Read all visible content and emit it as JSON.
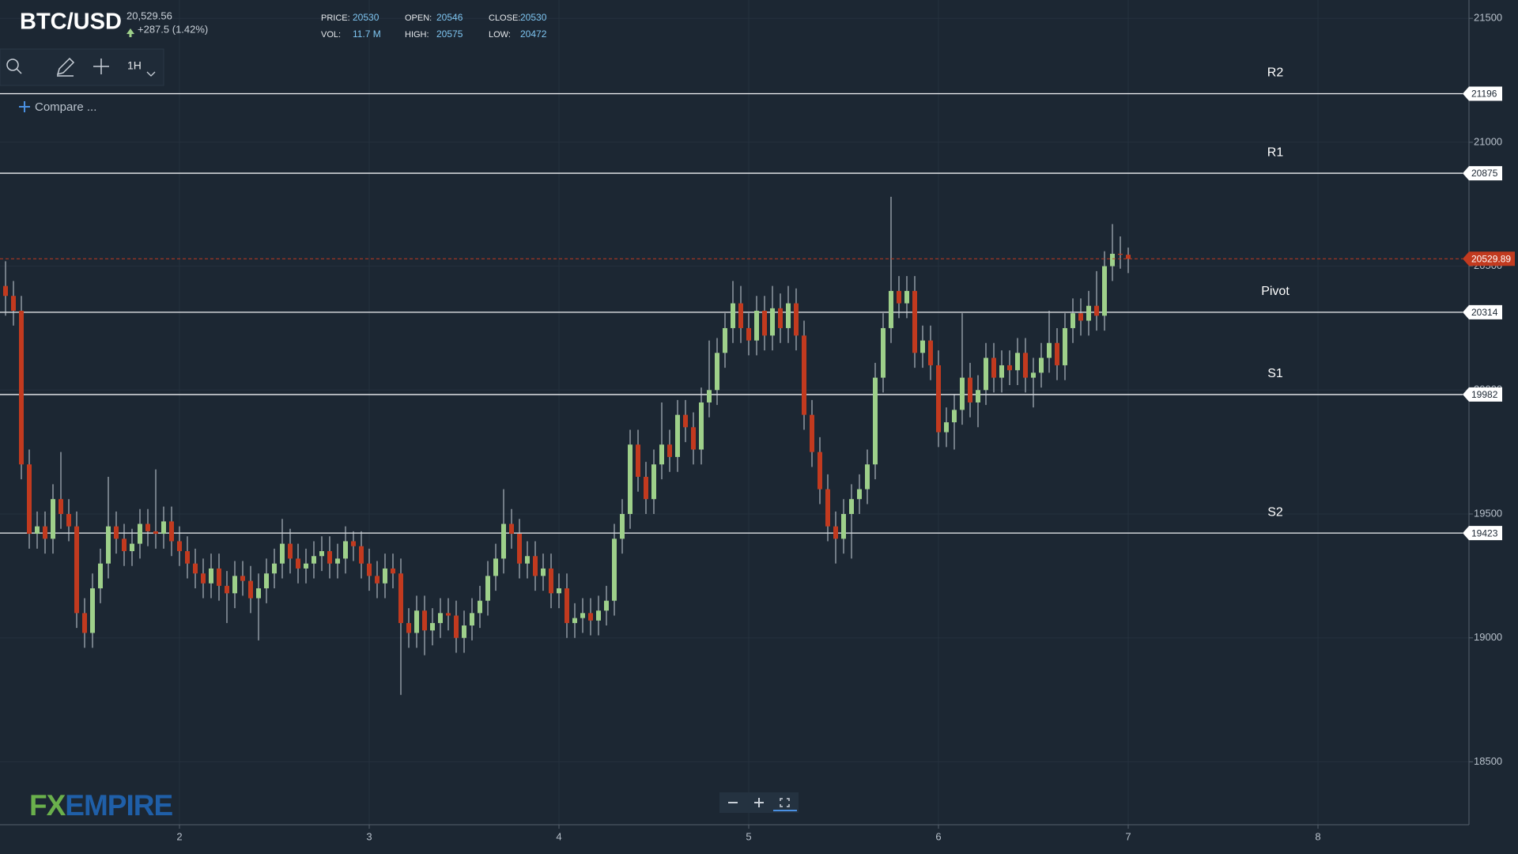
{
  "chart_data": {
    "type": "candlestick",
    "title": "BTC/USD",
    "price": "20,529.56",
    "change": "+287.5 (1.42%)",
    "stats": [
      {
        "label": "PRICE:",
        "value": 20530
      },
      {
        "label": "OPEN:",
        "value": 20546
      },
      {
        "label": "CLOSE:",
        "value": 20530
      },
      {
        "label": "VOL:",
        "value": "11.7 M"
      },
      {
        "label": "HIGH:",
        "value": 20575
      },
      {
        "label": "LOW:",
        "value": 20472
      }
    ],
    "interval": "1H",
    "compare": "Compare ...",
    "logo": {
      "fx": "FX",
      "empire": "EMPIRE"
    },
    "up_color": "#9ed08a",
    "down_color": "#c23a1f",
    "x": [
      26,
      27,
      28,
      29,
      30,
      31,
      32,
      33,
      34,
      35,
      36,
      37,
      38,
      39,
      40,
      41,
      42,
      43,
      44,
      45,
      46,
      47,
      48,
      49,
      50,
      51,
      52,
      53,
      54,
      55,
      56,
      57,
      58,
      59,
      60,
      61,
      62,
      63,
      64,
      65,
      66,
      67,
      68,
      69,
      70,
      71,
      72,
      73,
      74,
      75,
      76,
      77,
      78,
      79,
      80,
      81,
      82,
      83,
      84,
      85,
      86,
      87,
      88,
      89,
      90,
      91,
      92,
      93,
      94,
      95,
      96,
      97,
      98,
      99,
      100,
      101,
      102,
      103,
      104,
      105,
      106,
      107,
      108,
      109,
      110,
      111,
      112,
      113,
      114,
      115,
      116,
      117,
      118,
      119,
      120,
      121,
      122,
      123,
      124,
      125,
      126,
      127,
      128,
      129,
      130,
      131,
      132,
      133,
      134,
      135,
      136,
      137,
      138,
      139,
      140,
      141,
      142,
      143,
      144,
      145,
      146,
      147,
      148,
      149,
      150,
      151,
      152,
      153,
      154,
      155,
      156,
      157,
      158,
      159,
      160,
      161,
      162,
      163,
      164,
      165,
      166,
      167,
      168
    ],
    "open": [
      20420,
      20380,
      20320,
      19700,
      19420,
      19450,
      19400,
      19560,
      19500,
      19450,
      19100,
      19020,
      19200,
      19300,
      19450,
      19400,
      19350,
      19380,
      19460,
      19430,
      19420,
      19470,
      19390,
      19350,
      19300,
      19260,
      19220,
      19280,
      19210,
      19180,
      19250,
      19230,
      19160,
      19200,
      19260,
      19300,
      19380,
      19320,
      19280,
      19300,
      19330,
      19350,
      19300,
      19320,
      19390,
      19370,
      19300,
      19250,
      19220,
      19280,
      19260,
      19060,
      19020,
      19110,
      19030,
      19060,
      19100,
      19090,
      19000,
      19050,
      19100,
      19150,
      19250,
      19320,
      19460,
      19420,
      19300,
      19330,
      19250,
      19280,
      19180,
      19200,
      19060,
      19080,
      19100,
      19070,
      19110,
      19150,
      19400,
      19500,
      19780,
      19650,
      19560,
      19700,
      19780,
      19730,
      19900,
      19850,
      19760,
      19950,
      20000,
      20150,
      20250,
      20350,
      20250,
      20200,
      20320,
      20220,
      20330,
      20250,
      20350,
      20220,
      19900,
      19750,
      19600,
      19450,
      19400,
      19500,
      19560,
      19600,
      19700,
      20050,
      20250,
      20400,
      20350,
      20400,
      20150,
      20200,
      20100,
      19830,
      19870,
      19920,
      20050,
      19950,
      20000,
      20130,
      20050,
      20100,
      20080,
      20150,
      20050,
      20070,
      20130,
      20190,
      20100,
      20250,
      20310,
      20280,
      20340,
      20300,
      20500,
      20550,
      20546
    ],
    "high": [
      20520,
      20440,
      20380,
      19760,
      19510,
      19510,
      19620,
      19750,
      19560,
      19510,
      19160,
      19260,
      19360,
      19650,
      19510,
      19460,
      19440,
      19520,
      19520,
      19680,
      19530,
      19530,
      19450,
      19410,
      19360,
      19320,
      19340,
      19340,
      19270,
      19310,
      19310,
      19290,
      19260,
      19320,
      19360,
      19480,
      19440,
      19380,
      19360,
      19390,
      19410,
      19410,
      19380,
      19450,
      19430,
      19430,
      19360,
      19310,
      19340,
      19340,
      19320,
      19120,
      19170,
      19170,
      19120,
      19160,
      19160,
      19150,
      19110,
      19160,
      19210,
      19310,
      19380,
      19600,
      19520,
      19480,
      19390,
      19390,
      19340,
      19340,
      19260,
      19260,
      19140,
      19160,
      19160,
      19170,
      19210,
      19460,
      19560,
      19840,
      19840,
      19710,
      19760,
      19950,
      19840,
      19960,
      19960,
      19910,
      20010,
      20200,
      20210,
      20310,
      20440,
      20420,
      20310,
      20380,
      20380,
      20420,
      20390,
      20420,
      20410,
      20280,
      19960,
      19810,
      19660,
      19510,
      19560,
      19620,
      19660,
      19760,
      20110,
      20310,
      20780,
      20460,
      20460,
      20460,
      20260,
      20260,
      20160,
      19930,
      19980,
      20310,
      20110,
      20060,
      20190,
      20190,
      20160,
      20160,
      20210,
      20210,
      20130,
      20190,
      20320,
      20250,
      20310,
      20370,
      20370,
      20400,
      20480,
      20560,
      20670,
      20620,
      20575
    ],
    "low": [
      20300,
      20260,
      19640,
      19360,
      19360,
      19340,
      19340,
      19440,
      19390,
      19040,
      18960,
      18960,
      19140,
      19240,
      19340,
      19290,
      19290,
      19320,
      19370,
      19360,
      19360,
      19330,
      19290,
      19240,
      19200,
      19160,
      19160,
      19150,
      19060,
      19120,
      19170,
      19100,
      18990,
      19140,
      19200,
      19240,
      19260,
      19220,
      19220,
      19240,
      19270,
      19240,
      19240,
      19260,
      19310,
      19240,
      19190,
      19160,
      19160,
      19200,
      18770,
      18960,
      18960,
      18930,
      18970,
      19000,
      19030,
      18940,
      18940,
      18990,
      19040,
      19090,
      19190,
      19260,
      19360,
      19240,
      19240,
      19190,
      19190,
      19120,
      19120,
      19000,
      19000,
      19020,
      19010,
      19010,
      19050,
      19090,
      19340,
      19440,
      19590,
      19500,
      19500,
      19640,
      19670,
      19670,
      19790,
      19700,
      19700,
      19890,
      19940,
      20090,
      20190,
      20190,
      20140,
      20140,
      20160,
      20160,
      20190,
      20190,
      20160,
      19840,
      19690,
      19540,
      19390,
      19300,
      19340,
      19320,
      19500,
      19540,
      19640,
      19990,
      20190,
      20290,
      20290,
      20090,
      20090,
      20040,
      19770,
      19770,
      19760,
      19860,
      19890,
      19850,
      19940,
      19990,
      19990,
      20020,
      20020,
      19990,
      19930,
      20010,
      20070,
      20040,
      20040,
      20190,
      20220,
      20220,
      20240,
      20240,
      20440,
      20490,
      20472
    ],
    "close": [
      20380,
      20320,
      19700,
      19420,
      19450,
      19400,
      19560,
      19500,
      19450,
      19100,
      19020,
      19200,
      19300,
      19450,
      19400,
      19350,
      19380,
      19460,
      19430,
      19420,
      19470,
      19390,
      19350,
      19300,
      19260,
      19220,
      19280,
      19210,
      19180,
      19250,
      19230,
      19160,
      19200,
      19260,
      19300,
      19380,
      19320,
      19280,
      19300,
      19330,
      19350,
      19300,
      19320,
      19390,
      19370,
      19300,
      19250,
      19220,
      19280,
      19260,
      19060,
      19020,
      19110,
      19030,
      19060,
      19100,
      19090,
      19000,
      19050,
      19100,
      19150,
      19250,
      19320,
      19460,
      19420,
      19300,
      19330,
      19250,
      19280,
      19180,
      19200,
      19060,
      19080,
      19100,
      19070,
      19110,
      19150,
      19400,
      19500,
      19780,
      19650,
      19560,
      19700,
      19780,
      19730,
      19900,
      19850,
      19760,
      19950,
      20000,
      20150,
      20250,
      20350,
      20250,
      20200,
      20320,
      20220,
      20330,
      20250,
      20350,
      20220,
      19900,
      19750,
      19600,
      19450,
      19400,
      19500,
      19560,
      19600,
      19700,
      20050,
      20250,
      20400,
      20350,
      20400,
      20150,
      20200,
      20100,
      19830,
      19870,
      19920,
      20050,
      19950,
      20000,
      20130,
      20050,
      20100,
      20080,
      20150,
      20050,
      20070,
      20130,
      20190,
      20100,
      20250,
      20310,
      20280,
      20340,
      20300,
      20500,
      20550,
      20546,
      20530
    ],
    "xlim": [
      25.3,
      211.1
    ],
    "xticks": [
      {
        "value": 48,
        "label": "2"
      },
      {
        "value": 72,
        "label": "3"
      },
      {
        "value": 96,
        "label": "4"
      },
      {
        "value": 120,
        "label": "5"
      },
      {
        "value": 144,
        "label": "6"
      },
      {
        "value": 168,
        "label": "7"
      },
      {
        "value": 192,
        "label": "8"
      }
    ],
    "ylim": [
      18246,
      21574
    ],
    "yticks": [
      18500,
      19000,
      19500,
      20000,
      20500,
      21000,
      21500
    ],
    "grid": true,
    "levels": [
      {
        "name": "R2",
        "value": 21196
      },
      {
        "name": "R1",
        "value": 20875
      },
      {
        "name": "Pivot",
        "value": 20314
      },
      {
        "name": "S1",
        "value": 19982
      },
      {
        "name": "S2",
        "value": 19423
      }
    ],
    "last_price": 20529.89
  }
}
